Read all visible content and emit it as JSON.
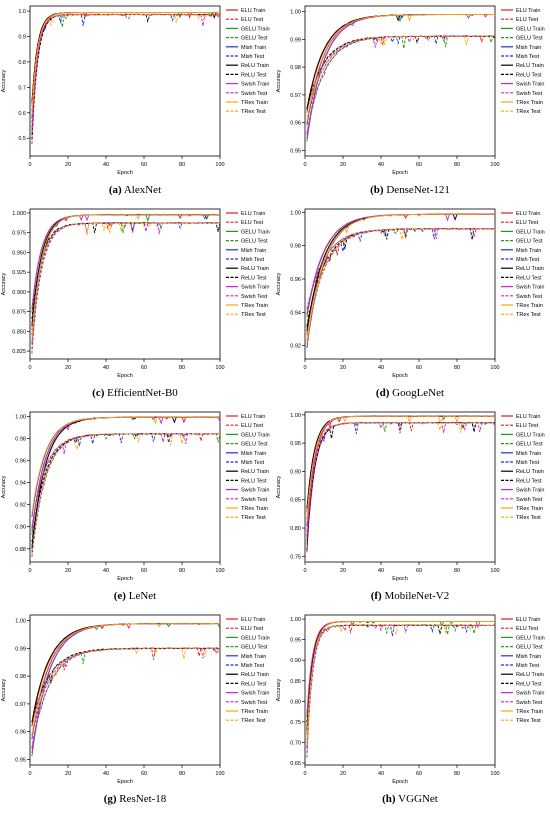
{
  "legend": [
    {
      "label": "ELU Train",
      "color": "#e41a1c",
      "dash": false
    },
    {
      "label": "ELU Test",
      "color": "#e41a1c",
      "dash": true
    },
    {
      "label": "GELU Train",
      "color": "#1a9e1a",
      "dash": false
    },
    {
      "label": "GELU Test",
      "color": "#1a9e1a",
      "dash": true
    },
    {
      "label": "Mish Train",
      "color": "#1f2fd6",
      "dash": false
    },
    {
      "label": "Mish Test",
      "color": "#1f2fd6",
      "dash": true
    },
    {
      "label": "ReLU Train",
      "color": "#000000",
      "dash": false
    },
    {
      "label": "ReLU Test",
      "color": "#000000",
      "dash": true
    },
    {
      "label": "Swish Train",
      "color": "#d61fd6",
      "dash": false
    },
    {
      "label": "Swish Test",
      "color": "#d61fd6",
      "dash": true
    },
    {
      "label": "TRex Train",
      "color": "#ffa500",
      "dash": false
    },
    {
      "label": "TRex Test",
      "color": "#ffa500",
      "dash": true
    }
  ],
  "chart_data": [
    {
      "type": "line",
      "caption_letter": "(a)",
      "caption_name": "AlexNet",
      "xlabel": "Epoch",
      "ylabel": "Accuracy",
      "xlim": [
        0,
        100
      ],
      "ylim": [
        0.43,
        1.02
      ],
      "xticks": [
        "0",
        "20",
        "40",
        "60",
        "80",
        "100"
      ],
      "yticks": [
        "0.5",
        "0.6",
        "0.7",
        "0.8",
        "0.9",
        "1.0"
      ],
      "ytick_values": [
        0.5,
        0.6,
        0.7,
        0.8,
        0.9,
        1.0
      ],
      "series_profile": {
        "start": 0.46,
        "train_final": 0.995,
        "test_final": 0.985,
        "rise": 3
      }
    },
    {
      "type": "line",
      "caption_letter": "(b)",
      "caption_name": "DenseNet-121",
      "xlabel": "Epoch",
      "ylabel": "Accuracy",
      "xlim": [
        0,
        100
      ],
      "ylim": [
        0.948,
        1.002
      ],
      "xticks": [
        "0",
        "20",
        "40",
        "60",
        "80",
        "100"
      ],
      "yticks": [
        "0.95",
        "0.96",
        "0.97",
        "0.98",
        "0.99",
        "1.00"
      ],
      "ytick_values": [
        0.95,
        0.96,
        0.97,
        0.98,
        0.99,
        1.0
      ],
      "series_profile": {
        "start": 0.952,
        "train_final": 0.999,
        "test_final": 0.991,
        "rise": 9
      }
    },
    {
      "type": "line",
      "caption_letter": "(c)",
      "caption_name": "EfficientNet-B0",
      "xlabel": "Epoch",
      "ylabel": "Accuracy",
      "xlim": [
        0,
        100
      ],
      "ylim": [
        0.815,
        1.005
      ],
      "xticks": [
        "0",
        "20",
        "40",
        "60",
        "80",
        "100"
      ],
      "yticks": [
        "0.825",
        "0.850",
        "0.875",
        "0.900",
        "0.925",
        "0.950",
        "0.975",
        "1.000"
      ],
      "ytick_values": [
        0.825,
        0.85,
        0.875,
        0.9,
        0.925,
        0.95,
        0.975,
        1.0
      ],
      "series_profile": {
        "start": 0.82,
        "train_final": 0.998,
        "test_final": 0.987,
        "rise": 5
      }
    },
    {
      "type": "line",
      "caption_letter": "(d)",
      "caption_name": "GoogLeNet",
      "xlabel": "Epoch",
      "ylabel": "Accuracy",
      "xlim": [
        0,
        100
      ],
      "ylim": [
        0.912,
        1.002
      ],
      "xticks": [
        "0",
        "20",
        "40",
        "60",
        "80",
        "100"
      ],
      "yticks": [
        "0.92",
        "0.94",
        "0.96",
        "0.98",
        "1.00"
      ],
      "ytick_values": [
        0.92,
        0.94,
        0.96,
        0.98,
        1.0
      ],
      "series_profile": {
        "start": 0.918,
        "train_final": 0.999,
        "test_final": 0.99,
        "rise": 9
      }
    },
    {
      "type": "line",
      "caption_letter": "(e)",
      "caption_name": "LeNet",
      "xlabel": "Epoch",
      "ylabel": "Accuracy",
      "xlim": [
        0,
        100
      ],
      "ylim": [
        0.868,
        1.004
      ],
      "xticks": [
        "0",
        "20",
        "40",
        "60",
        "80",
        "100"
      ],
      "yticks": [
        "0.88",
        "0.90",
        "0.92",
        "0.94",
        "0.96",
        "0.98",
        "1.00"
      ],
      "ytick_values": [
        0.88,
        0.9,
        0.92,
        0.94,
        0.96,
        0.98,
        1.0
      ],
      "series_profile": {
        "start": 0.872,
        "train_final": 0.9995,
        "test_final": 0.984,
        "rise": 7
      }
    },
    {
      "type": "line",
      "caption_letter": "(f)",
      "caption_name": "MobileNet-V2",
      "xlabel": "Epoch",
      "ylabel": "Accuracy",
      "xlim": [
        0,
        100
      ],
      "ylim": [
        0.74,
        1.005
      ],
      "xticks": [
        "0",
        "20",
        "40",
        "60",
        "80",
        "100"
      ],
      "yticks": [
        "0.75",
        "0.80",
        "0.85",
        "0.90",
        "0.95",
        "1.00"
      ],
      "ytick_values": [
        0.75,
        0.8,
        0.85,
        0.9,
        0.95,
        1.0
      ],
      "series_profile": {
        "start": 0.75,
        "train_final": 0.998,
        "test_final": 0.986,
        "rise": 4
      }
    },
    {
      "type": "line",
      "caption_letter": "(g)",
      "caption_name": "ResNet-18",
      "xlabel": "Epoch",
      "ylabel": "Accuracy",
      "xlim": [
        0,
        100
      ],
      "ylim": [
        0.948,
        1.002
      ],
      "xticks": [
        "0",
        "20",
        "40",
        "60",
        "80",
        "100"
      ],
      "yticks": [
        "0.95",
        "0.96",
        "0.97",
        "0.98",
        "0.99",
        "1.00"
      ],
      "ytick_values": [
        0.95,
        0.96,
        0.97,
        0.98,
        0.99,
        1.0
      ],
      "series_profile": {
        "start": 0.95,
        "train_final": 0.999,
        "test_final": 0.99,
        "rise": 9
      }
    },
    {
      "type": "line",
      "caption_letter": "(h)",
      "caption_name": "VGGNet",
      "xlabel": "Epoch",
      "ylabel": "Accuracy",
      "xlim": [
        0,
        100
      ],
      "ylim": [
        0.645,
        1.01
      ],
      "xticks": [
        "0",
        "20",
        "40",
        "60",
        "80",
        "100"
      ],
      "yticks": [
        "0.65",
        "0.70",
        "0.75",
        "0.80",
        "0.85",
        "0.90",
        "0.95",
        "1.00"
      ],
      "ytick_values": [
        0.65,
        0.7,
        0.75,
        0.8,
        0.85,
        0.9,
        0.95,
        1.0
      ],
      "series_profile": {
        "start": 0.66,
        "train_final": 0.995,
        "test_final": 0.985,
        "rise": 3
      }
    }
  ]
}
